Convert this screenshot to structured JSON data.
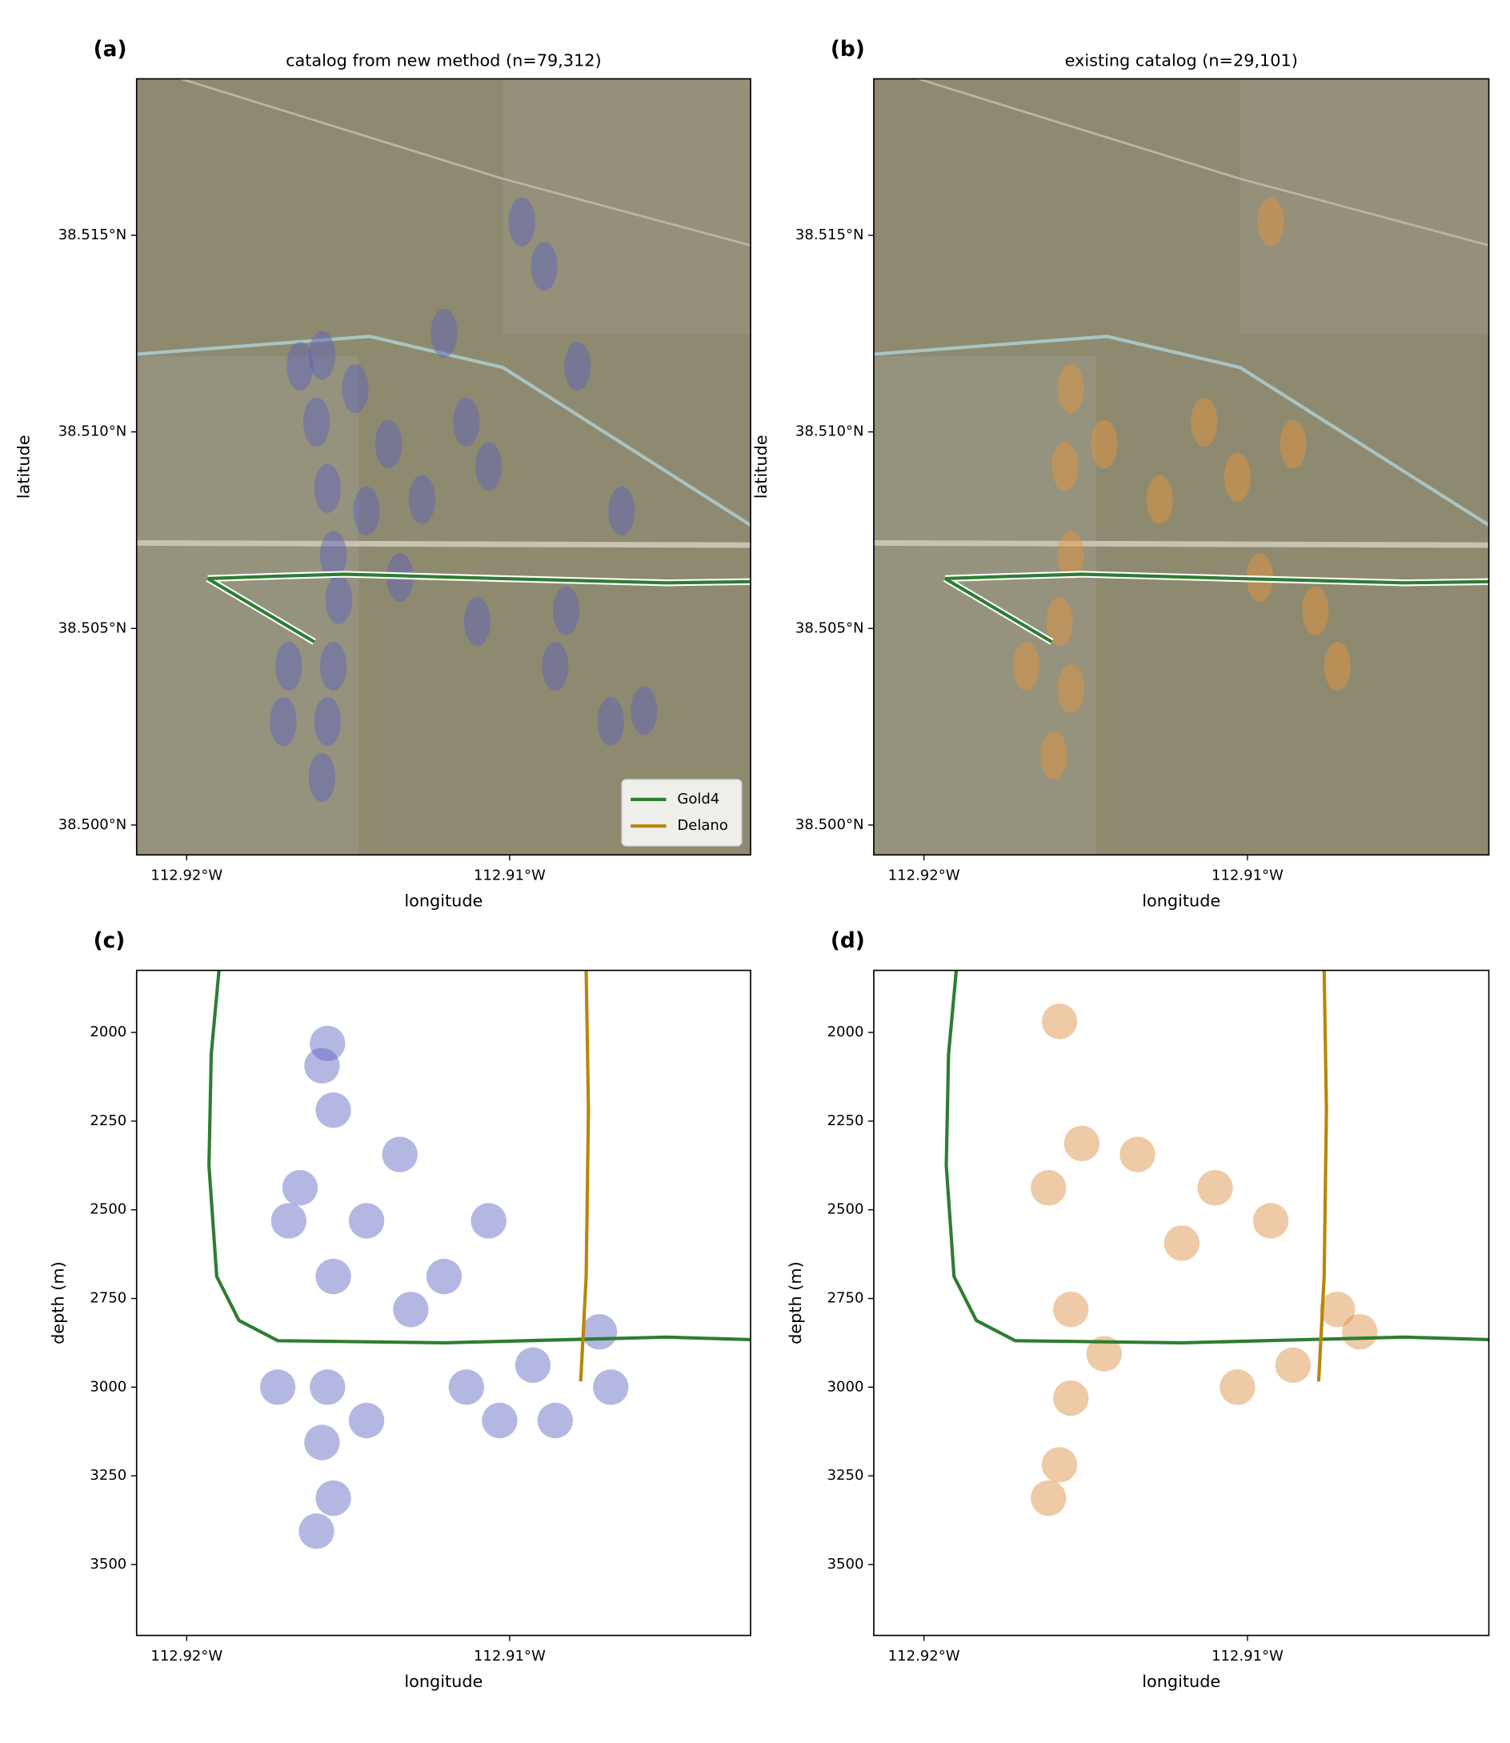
{
  "chart_data": [
    {
      "type": "scatter",
      "panel_label": "(a)",
      "title": "catalog from new method (n=79,312)",
      "x_label": "longitude",
      "y_label": "latitude",
      "basemap": true,
      "xlim": [
        -112.92155,
        -112.90254
      ],
      "ylim": [
        38.49924,
        38.51898
      ],
      "xticks": [
        {
          "value": -112.92,
          "label": "112.92°W"
        },
        {
          "value": -112.91,
          "label": "112.91°W"
        }
      ],
      "yticks": [
        {
          "value": 38.5,
          "label": "38.500°N"
        },
        {
          "value": 38.505,
          "label": "38.505°N"
        },
        {
          "value": 38.51,
          "label": "38.510°N"
        },
        {
          "value": 38.515,
          "label": "38.515°N"
        }
      ],
      "points": {
        "color": "#5a5fc0",
        "x": [
          -112.91581,
          -112.91598,
          -112.91564,
          -112.91546,
          -112.91529,
          -112.91546,
          -112.91564,
          -112.91581,
          -112.91684,
          -112.91701,
          -112.91649,
          -112.91478,
          -112.91375,
          -112.91271,
          -112.91203,
          -112.91134,
          -112.91065,
          -112.90962,
          -112.90893,
          -112.90825,
          -112.90859,
          -112.90687,
          -112.90584,
          -112.9079,
          -112.90653,
          -112.91443,
          -112.9134,
          -112.911
        ],
        "y": [
          38.51195,
          38.51025,
          38.50856,
          38.50686,
          38.50573,
          38.50404,
          38.50263,
          38.50121,
          38.50404,
          38.50263,
          38.51167,
          38.5111,
          38.50969,
          38.50828,
          38.51251,
          38.51025,
          38.50912,
          38.51534,
          38.51421,
          38.50545,
          38.50404,
          38.50263,
          38.50291,
          38.51167,
          38.50799,
          38.50799,
          38.5063,
          38.50517
        ]
      },
      "wells": [
        {
          "name": "Gold4",
          "color": "#2e7d32",
          "x": [
            -112.91935,
            -112.91718,
            -112.91512,
            -112.91031,
            -112.90515,
            -112.90254,
            null,
            -112.91935,
            -112.91605
          ],
          "y": [
            38.50627,
            38.50633,
            38.50638,
            38.50627,
            38.50616,
            38.50619,
            null,
            38.50627,
            38.50466
          ]
        },
        {
          "name": "Delano",
          "color": "#b8860b",
          "x": [],
          "y": []
        }
      ],
      "legend": "lower right"
    },
    {
      "type": "scatter",
      "panel_label": "(b)",
      "title": "existing catalog (n=29,101)",
      "x_label": "longitude",
      "y_label": "latitude",
      "basemap": true,
      "xlim": [
        -112.92155,
        -112.90254
      ],
      "ylim": [
        38.49924,
        38.51898
      ],
      "xticks": [
        {
          "value": -112.92,
          "label": "112.92°W"
        },
        {
          "value": -112.91,
          "label": "112.91°W"
        }
      ],
      "yticks": [
        {
          "value": 38.5,
          "label": "38.500°N"
        },
        {
          "value": 38.505,
          "label": "38.505°N"
        },
        {
          "value": 38.51,
          "label": "38.510°N"
        },
        {
          "value": 38.515,
          "label": "38.515°N"
        }
      ],
      "points": {
        "color": "#e8943a",
        "x": [
          -112.91546,
          -112.91564,
          -112.91546,
          -112.91581,
          -112.91546,
          -112.91598,
          -112.91684,
          -112.91443,
          -112.91271,
          -112.91134,
          -112.91031,
          -112.90859,
          -112.90722,
          -112.9079,
          -112.90962,
          -112.90928
        ],
        "y": [
          38.5111,
          38.50912,
          38.50686,
          38.50517,
          38.50347,
          38.50177,
          38.50404,
          38.50969,
          38.50828,
          38.51025,
          38.50884,
          38.50969,
          38.50404,
          38.50545,
          38.5063,
          38.51534
        ]
      },
      "wells": [
        {
          "name": "Gold4",
          "color": "#2e7d32",
          "x": [
            -112.91935,
            -112.91718,
            -112.91512,
            -112.91031,
            -112.90515,
            -112.90254,
            null,
            -112.91935,
            -112.91605
          ],
          "y": [
            38.50627,
            38.50633,
            38.50638,
            38.50627,
            38.50616,
            38.50619,
            null,
            38.50627,
            38.50466
          ]
        }
      ]
    },
    {
      "type": "scatter",
      "panel_label": "(c)",
      "x_label": "longitude",
      "y_label": "depth (m)",
      "basemap": false,
      "xlim": [
        -112.92155,
        -112.90254
      ],
      "ylim": [
        3700,
        1825
      ],
      "xticks": [
        {
          "value": -112.92,
          "label": "112.92°W"
        },
        {
          "value": -112.91,
          "label": "112.91°W"
        }
      ],
      "yticks": [
        2000,
        2250,
        2500,
        2750,
        3000,
        3250,
        3500
      ],
      "points": {
        "color": "#5a5fc0",
        "x": [
          -112.91581,
          -112.91564,
          -112.91546,
          -112.91649,
          -112.91684,
          -112.91546,
          -112.91564,
          -112.91581,
          -112.91546,
          -112.91598,
          -112.91443,
          -112.9134,
          -112.91306,
          -112.91134,
          -112.91031,
          -112.90928,
          -112.90859,
          -112.90722,
          -112.90687,
          -112.91065,
          -112.91203,
          -112.91718,
          -112.91443
        ],
        "y": [
          2094,
          2031,
          2219,
          2438,
          2531,
          2688,
          3000,
          3156,
          3313,
          3406,
          2531,
          2344,
          2781,
          3000,
          3094,
          2938,
          3094,
          2844,
          3000,
          2531,
          2688,
          3000,
          3094
        ]
      },
      "wells": [
        {
          "name": "Gold4",
          "color": "#2e7d32",
          "x": [
            -112.919,
            -112.91924,
            -112.91931,
            -112.91907,
            -112.91838,
            -112.91718,
            -112.91203,
            -112.90515,
            -112.90254
          ],
          "y": [
            1825,
            2062,
            2375,
            2688,
            2812,
            2869,
            2875,
            2859,
            2866
          ]
        },
        {
          "name": "Delano",
          "color": "#b8860b",
          "x": [
            -112.90763,
            -112.90756,
            -112.90763,
            -112.9078
          ],
          "y": [
            1825,
            2219,
            2688,
            2984
          ]
        }
      ]
    },
    {
      "type": "scatter",
      "panel_label": "(d)",
      "x_label": "longitude",
      "y_label": "depth (m)",
      "basemap": false,
      "xlim": [
        -112.92155,
        -112.90254
      ],
      "ylim": [
        3700,
        1825
      ],
      "xticks": [
        {
          "value": -112.92,
          "label": "112.92°W"
        },
        {
          "value": -112.91,
          "label": "112.91°W"
        }
      ],
      "yticks": [
        2000,
        2250,
        2500,
        2750,
        3000,
        3250,
        3500
      ],
      "points": {
        "color": "#d98a3a",
        "x": [
          -112.91581,
          -112.91512,
          -112.91615,
          -112.91546,
          -112.91546,
          -112.91581,
          -112.91615,
          -112.9134,
          -112.91203,
          -112.911,
          -112.90928,
          -112.91031,
          -112.90859,
          -112.90722,
          -112.90653,
          -112.91443
        ],
        "y": [
          1969,
          2313,
          2438,
          2781,
          3031,
          3219,
          3313,
          2344,
          2594,
          2438,
          2531,
          3000,
          2938,
          2781,
          2844,
          2906
        ]
      },
      "wells": [
        {
          "name": "Gold4",
          "color": "#2e7d32",
          "x": [
            -112.919,
            -112.91924,
            -112.91931,
            -112.91907,
            -112.91838,
            -112.91718,
            -112.91203,
            -112.90515,
            -112.90254
          ],
          "y": [
            1825,
            2062,
            2375,
            2688,
            2812,
            2869,
            2875,
            2859,
            2866
          ]
        },
        {
          "name": "Delano",
          "color": "#b8860b",
          "x": [
            -112.90763,
            -112.90756,
            -112.90763,
            -112.9078
          ],
          "y": [
            1825,
            2219,
            2688,
            2984
          ]
        }
      ]
    }
  ]
}
